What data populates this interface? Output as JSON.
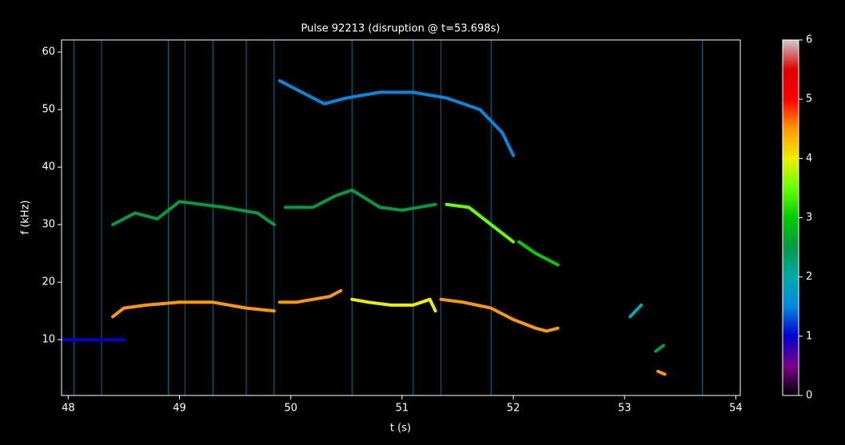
{
  "chart_data": {
    "type": "spectrogram",
    "title": "Pulse 92213 (disruption @ t=53.698s)",
    "x_label": "t (s)",
    "y_label": "f (kHz)",
    "xlim": [
      47.94,
      54.04
    ],
    "ylim": [
      0.3,
      62.1
    ],
    "xticks": [
      48,
      49,
      50,
      51,
      52,
      53,
      54
    ],
    "yticks": [
      10,
      20,
      30,
      40,
      50,
      60
    ],
    "clim": [
      0,
      6
    ],
    "cticks": [
      0,
      1,
      2,
      3,
      4,
      5,
      6
    ],
    "colormap": [
      "#000000",
      "#7a0089",
      "#0000cc",
      "#0088dd",
      "#00aaaa",
      "#009944",
      "#00cc00",
      "#66ff00",
      "#eeee00",
      "#ff9900",
      "#ff0000",
      "#dd0000",
      "#cccccc"
    ],
    "bursts": [
      48.05,
      48.3,
      48.9,
      49.05,
      49.3,
      49.6,
      49.85,
      50.55,
      51.1,
      51.35,
      51.8,
      53.7
    ],
    "traces": [
      {
        "x": [
          48.4,
          48.5,
          48.7,
          49.0,
          49.3,
          49.6,
          49.85
        ],
        "values": [
          14,
          15.5,
          16,
          16.5,
          16.5,
          15.5,
          15
        ],
        "intensity": 4.5
      },
      {
        "x": [
          49.9,
          50.05,
          50.2,
          50.35,
          50.45
        ],
        "values": [
          16.5,
          16.5,
          17,
          17.5,
          18.5
        ],
        "intensity": 4.5
      },
      {
        "x": [
          50.55,
          50.7,
          50.9,
          51.1,
          51.25,
          51.3
        ],
        "values": [
          17,
          16.5,
          16,
          16,
          17,
          15
        ],
        "intensity": 4
      },
      {
        "x": [
          51.35,
          51.55,
          51.8,
          52.0,
          52.2,
          52.3,
          52.4
        ],
        "values": [
          17,
          16.5,
          15.5,
          13.5,
          12,
          11.5,
          12
        ],
        "intensity": 4.5
      },
      {
        "x": [
          48.4,
          48.6,
          48.8,
          49.0,
          49.4,
          49.7,
          49.85
        ],
        "values": [
          30,
          32,
          31,
          34,
          33,
          32,
          30
        ],
        "intensity": 2.5
      },
      {
        "x": [
          49.95,
          50.2,
          50.4,
          50.55,
          50.8,
          51.0,
          51.3
        ],
        "values": [
          33,
          33,
          35,
          36,
          33,
          32.5,
          33.5
        ],
        "intensity": 2.5
      },
      {
        "x": [
          51.4,
          51.6,
          51.8,
          52.0
        ],
        "values": [
          33.5,
          33,
          30,
          27
        ],
        "intensity": 3.5
      },
      {
        "x": [
          52.05,
          52.2,
          52.4
        ],
        "values": [
          27,
          25,
          23
        ],
        "intensity": 3
      },
      {
        "x": [
          49.9,
          50.1,
          50.3,
          50.5,
          50.8,
          51.1,
          51.4,
          51.7,
          51.9,
          52.0
        ],
        "values": [
          55,
          53,
          51,
          52,
          53,
          53,
          52,
          50,
          46,
          42
        ],
        "intensity": 1.5
      },
      {
        "x": [
          53.05,
          53.15
        ],
        "values": [
          14,
          16
        ],
        "intensity": 2
      },
      {
        "x": [
          53.28,
          53.35
        ],
        "values": [
          8,
          9
        ],
        "intensity": 2.5
      },
      {
        "x": [
          53.3,
          53.36
        ],
        "values": [
          4.5,
          4
        ],
        "intensity": 4.5
      },
      {
        "x": [
          47.94,
          48.5
        ],
        "values": [
          10,
          10
        ],
        "intensity": 1
      }
    ]
  }
}
